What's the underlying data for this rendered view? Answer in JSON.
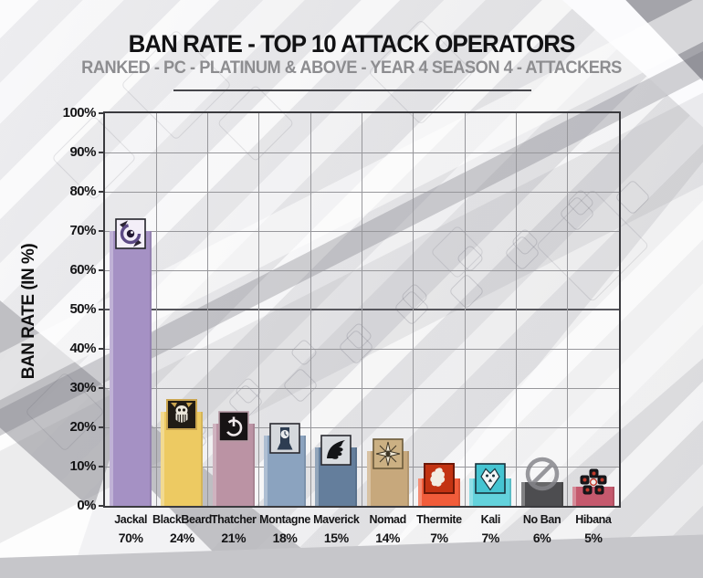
{
  "header": {
    "title": "BAN RATE - TOP 10 ATTACK OPERATORS",
    "subtitle": "RANKED - PC - PLATINUM & ABOVE - YEAR 4 SEASON 4 - ATTACKERS"
  },
  "colors": {
    "title_text": "#121214",
    "subtitle_text": "#8d8d90",
    "axis_border": "#3a3a3e",
    "gridline": "#97979b",
    "gridline_strong": "#56565c",
    "label_text": "#151517"
  },
  "chart_data": {
    "type": "bar",
    "title": "BAN RATE - TOP 10 ATTACK OPERATORS",
    "subtitle": "RANKED - PC - PLATINUM & ABOVE - YEAR 4 SEASON 4 - ATTACKERS",
    "xlabel": "",
    "ylabel": "BAN RATE (IN %)",
    "ylim": [
      0,
      100
    ],
    "y_tick_step": 10,
    "y_tick_labels": [
      "0%",
      "10%",
      "20%",
      "30%",
      "40%",
      "50%",
      "60%",
      "70%",
      "80%",
      "90%",
      "100%"
    ],
    "grid": true,
    "legend_position": "none",
    "categories": [
      "Jackal",
      "BlackBeard",
      "Thatcher",
      "Montagne",
      "Maverick",
      "Nomad",
      "Thermite",
      "Kali",
      "No Ban",
      "Hibana"
    ],
    "values": [
      70,
      24,
      21,
      18,
      15,
      14,
      7,
      7,
      6,
      5
    ],
    "value_labels": [
      "70%",
      "24%",
      "21%",
      "18%",
      "15%",
      "14%",
      "7%",
      "7%",
      "6%",
      "5%"
    ],
    "bar_colors": [
      "#a591c4",
      "#edca62",
      "#bb93a4",
      "#8ba3bf",
      "#647e9c",
      "#c7a87c",
      "#f15c3a",
      "#63d2dc",
      "#4d4d50",
      "#c5596d"
    ],
    "icons": [
      "jackal-icon",
      "blackbeard-icon",
      "thatcher-icon",
      "montagne-icon",
      "maverick-icon",
      "nomad-icon",
      "thermite-icon",
      "kali-icon",
      "no-ban-icon",
      "hibana-icon"
    ]
  }
}
